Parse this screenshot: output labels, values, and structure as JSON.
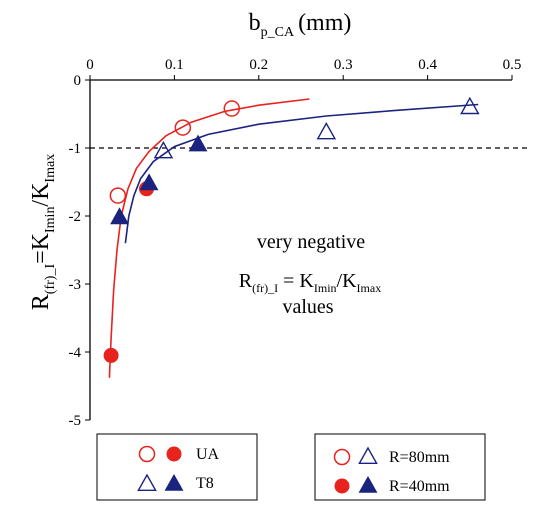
{
  "chart_data": {
    "type": "scatter",
    "x_axis": {
      "label_main": "b",
      "label_sub": "p_CA",
      "label_units": "(mm)",
      "range": [
        0,
        0.5
      ],
      "ticks": [
        0,
        0.1,
        0.2,
        0.3,
        0.4,
        0.5
      ],
      "tick_labels": [
        "0",
        "0.1",
        "0.2",
        "0.3",
        "0.4",
        "0.5"
      ],
      "position": "top"
    },
    "y_axis": {
      "label_parts": {
        "r": "R",
        "r_sub": "(fr)_I",
        "eq": "=K",
        "k1_sub": "Imin",
        "slash": "/K",
        "k2_sub": "Imax"
      },
      "range": [
        -5,
        0
      ],
      "ticks": [
        0,
        -1,
        -2,
        -3,
        -4,
        -5
      ],
      "tick_labels": [
        "0",
        "-1",
        "-2",
        "-3",
        "-4",
        "-5"
      ]
    },
    "reference_line": {
      "y": -1,
      "style": "dashed"
    },
    "annotation": {
      "line1": "very negative",
      "line2_r": "R",
      "line2_r_sub": "(fr)_I",
      "line2_eq": " = K",
      "line2_k1_sub": "Imin",
      "line2_slash": "/K",
      "line2_k2_sub": "Imax",
      "line3": "values"
    },
    "series": [
      {
        "material": "UA",
        "radius": "R=80mm",
        "marker": "circle-open",
        "color": "#e8231e",
        "points": [
          [
            0.033,
            -1.7
          ],
          [
            0.11,
            -0.7
          ],
          [
            0.168,
            -0.42
          ]
        ]
      },
      {
        "material": "UA",
        "radius": "R=40mm",
        "marker": "circle-filled",
        "color": "#e8231e",
        "points": [
          [
            0.025,
            -4.05
          ],
          [
            0.067,
            -1.6
          ]
        ]
      },
      {
        "material": "T8",
        "radius": "R=80mm",
        "marker": "triangle-open",
        "color": "#1a237e",
        "points": [
          [
            0.087,
            -1.05
          ],
          [
            0.28,
            -0.77
          ],
          [
            0.45,
            -0.4
          ]
        ]
      },
      {
        "material": "T8",
        "radius": "R=40mm",
        "marker": "triangle-filled",
        "color": "#1a237e",
        "points": [
          [
            0.035,
            -2.02
          ],
          [
            0.07,
            -1.52
          ],
          [
            0.128,
            -0.95
          ]
        ]
      }
    ],
    "fit_curves": [
      {
        "material": "UA",
        "color": "#e8231e",
        "points": [
          [
            0.023,
            -4.38
          ],
          [
            0.025,
            -3.8
          ],
          [
            0.028,
            -3.1
          ],
          [
            0.032,
            -2.5
          ],
          [
            0.037,
            -2.0
          ],
          [
            0.045,
            -1.6
          ],
          [
            0.055,
            -1.3
          ],
          [
            0.07,
            -1.05
          ],
          [
            0.09,
            -0.82
          ],
          [
            0.12,
            -0.62
          ],
          [
            0.16,
            -0.46
          ],
          [
            0.2,
            -0.37
          ],
          [
            0.26,
            -0.28
          ]
        ]
      },
      {
        "material": "T8",
        "color": "#1a237e",
        "points": [
          [
            0.042,
            -2.4
          ],
          [
            0.046,
            -2.0
          ],
          [
            0.052,
            -1.7
          ],
          [
            0.06,
            -1.45
          ],
          [
            0.075,
            -1.2
          ],
          [
            0.1,
            -0.98
          ],
          [
            0.14,
            -0.8
          ],
          [
            0.2,
            -0.65
          ],
          [
            0.28,
            -0.53
          ],
          [
            0.36,
            -0.45
          ],
          [
            0.46,
            -0.36
          ]
        ]
      }
    ],
    "legends": [
      {
        "location": "bottom-left",
        "entries": [
          {
            "label": "UA",
            "markers": [
              "circle-open",
              "circle-filled"
            ],
            "color": "#e8231e"
          },
          {
            "label": "T8",
            "markers": [
              "triangle-open",
              "triangle-filled"
            ],
            "color": "#1a237e"
          }
        ]
      },
      {
        "location": "bottom-right",
        "entries": [
          {
            "label": "R=80mm",
            "markers": [
              "circle-open",
              "triangle-open"
            ],
            "colors": [
              "#e8231e",
              "#1a237e"
            ]
          },
          {
            "label": "R=40mm",
            "markers": [
              "circle-filled",
              "triangle-filled"
            ],
            "colors": [
              "#e8231e",
              "#1a237e"
            ]
          }
        ]
      }
    ],
    "grid": false
  }
}
